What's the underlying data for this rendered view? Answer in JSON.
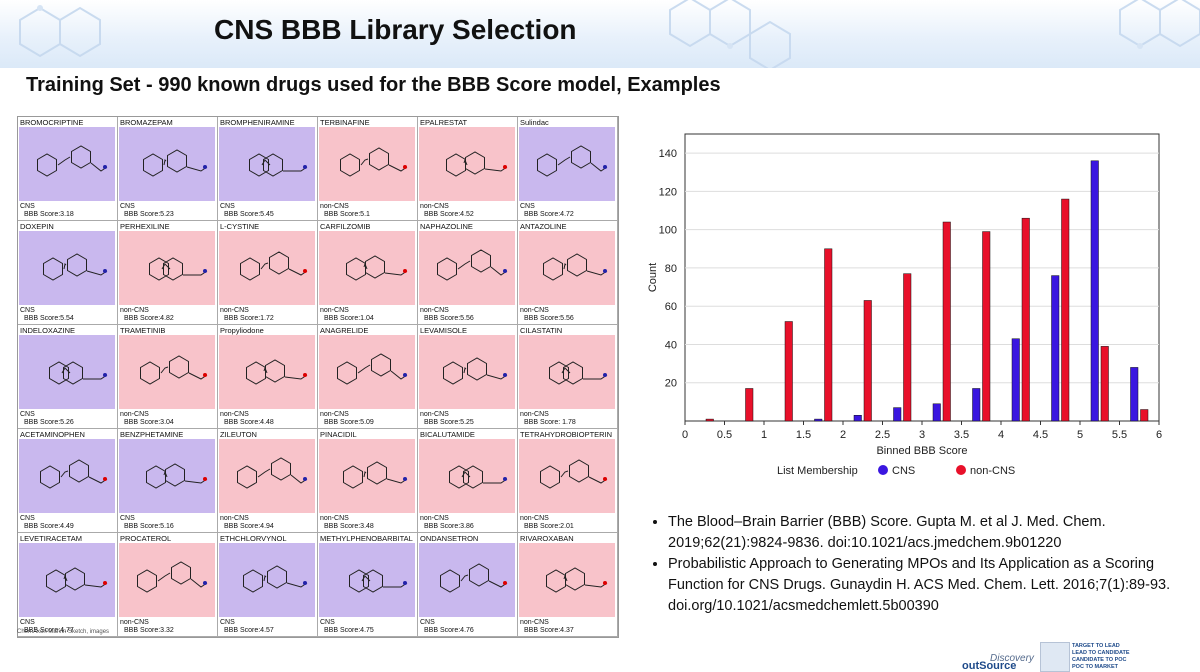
{
  "slide": {
    "title": "CNS BBB Library Selection",
    "subtitle": "Training Set - 990 known drugs used for the BBB Score model, Examples",
    "credit": "ChemAxon Marvin Sketch, images"
  },
  "molecule_grid": {
    "cells": [
      {
        "name": "BROMOCRIPTINE",
        "cls": "CNS",
        "score": "BBB Score:3.18"
      },
      {
        "name": "BROMAZEPAM",
        "cls": "CNS",
        "score": "BBB Score:5.23"
      },
      {
        "name": "BROMPHENIRAMINE",
        "cls": "CNS",
        "score": "BBB Score:5.45"
      },
      {
        "name": "TERBINAFINE",
        "cls": "non-CNS",
        "score": "BBB Score:5.1"
      },
      {
        "name": "EPALRESTAT",
        "cls": "non-CNS",
        "score": "BBB Score:4.52"
      },
      {
        "name": "Sulindac",
        "cls": "CNS",
        "score": "BBB Score:4.72"
      },
      {
        "name": "DOXEPIN",
        "cls": "CNS",
        "score": "BBB Score:5.54"
      },
      {
        "name": "PERHEXILINE",
        "cls": "non-CNS",
        "score": "BBB Score:4.82"
      },
      {
        "name": "L-CYSTINE",
        "cls": "non-CNS",
        "score": "BBB Score:1.72"
      },
      {
        "name": "CARFILZOMIB",
        "cls": "non-CNS",
        "score": "BBB Score:1.04"
      },
      {
        "name": "NAPHAZOLINE",
        "cls": "non-CNS",
        "score": "BBB Score:5.56"
      },
      {
        "name": "ANTAZOLINE",
        "cls": "non-CNS",
        "score": "BBB Score:5.56"
      },
      {
        "name": "INDELOXAZINE",
        "cls": "CNS",
        "score": "BBB Score:5.26"
      },
      {
        "name": "TRAMETINIB",
        "cls": "non-CNS",
        "score": "BBB Score:3.04"
      },
      {
        "name": "Propyliodone",
        "cls": "non-CNS",
        "score": "BBB Score:4.48"
      },
      {
        "name": "ANAGRELIDE",
        "cls": "non-CNS",
        "score": "BBB Score:5.09"
      },
      {
        "name": "LEVAMISOLE",
        "cls": "non-CNS",
        "score": "BBB Score:5.25"
      },
      {
        "name": "CILASTATIN",
        "cls": "non-CNS",
        "score": "BBB Score: 1.78"
      },
      {
        "name": "ACETAMINOPHEN",
        "cls": "CNS",
        "score": "BBB Score:4.49"
      },
      {
        "name": "BENZPHETAMINE",
        "cls": "CNS",
        "score": "BBB Score:5.16"
      },
      {
        "name": "ZILEUTON",
        "cls": "non-CNS",
        "score": "BBB Score:4.94"
      },
      {
        "name": "PINACIDIL",
        "cls": "non-CNS",
        "score": "BBB Score:3.48"
      },
      {
        "name": "BICALUTAMIDE",
        "cls": "non-CNS",
        "score": "BBB Score:3.86"
      },
      {
        "name": "TETRAHYDROBIOPTERIN",
        "cls": "non-CNS",
        "score": "BBB Score:2.01"
      },
      {
        "name": "LEVETIRACETAM",
        "cls": "CNS",
        "score": "BBB Score:4.77"
      },
      {
        "name": "PROCATEROL",
        "cls": "non-CNS",
        "score": "BBB Score:3.32"
      },
      {
        "name": "ETHCHLORVYNOL",
        "cls": "CNS",
        "score": "BBB Score:4.57"
      },
      {
        "name": "METHYLPHENOBARBITAL",
        "cls": "CNS",
        "score": "BBB Score:4.75"
      },
      {
        "name": "ONDANSETRON",
        "cls": "CNS",
        "score": "BBB Score:4.76"
      },
      {
        "name": "RIVAROXABAN",
        "cls": "non-CNS",
        "score": "BBB Score:4.37"
      }
    ]
  },
  "chart_data": {
    "type": "bar",
    "title": "",
    "xlabel": "Binned BBB Score",
    "ylabel": "Count",
    "xlim": [
      0,
      6
    ],
    "ylim": [
      0,
      150
    ],
    "x_ticks": [
      "0",
      "0.5",
      "1",
      "1.5",
      "2",
      "2.5",
      "3",
      "3.5",
      "4",
      "4.5",
      "5",
      "5.5",
      "6"
    ],
    "y_ticks": [
      20,
      40,
      60,
      80,
      100,
      120,
      140
    ],
    "legend_title": "List Membership",
    "legend_position": "bottom",
    "grid": true,
    "bin_centers": [
      0.25,
      0.75,
      1.25,
      1.75,
      2.25,
      2.75,
      3.25,
      3.75,
      4.25,
      4.75,
      5.25,
      5.75
    ],
    "series": [
      {
        "name": "CNS",
        "color": "#3a16e0",
        "values": [
          0,
          0,
          0,
          1,
          3,
          7,
          9,
          17,
          43,
          76,
          136,
          28
        ]
      },
      {
        "name": "non-CNS",
        "color": "#e8102a",
        "values": [
          1,
          17,
          52,
          90,
          63,
          77,
          104,
          99,
          106,
          116,
          39,
          6
        ]
      }
    ]
  },
  "references": [
    "The Blood–Brain Barrier (BBB) Score. Gupta M. et al J. Med. Chem. 2019;62(21):9824-9836. doi:10.1021/acs.jmedchem.9b01220",
    "Probabilistic Approach to Generating MPOs and Its Application as a Scoring Function for CNS Drugs. Gunaydin H. ACS Med. Chem. Lett. 2016;7(1):89-93. doi.org/10.1021/acsmedchemlett.5b00390"
  ],
  "logo": {
    "discovery": "Discovery",
    "outsource": "outSource",
    "taglines": [
      "TARGET TO LEAD",
      "LEAD TO CANDIDATE",
      "CANDIDATE TO POC",
      "POC TO MARKET"
    ]
  },
  "colors": {
    "cns_bg": "#c9b8ee",
    "noncns_bg": "#f8c3ca",
    "cns_bar": "#3a16e0",
    "noncns_bar": "#e8102a"
  }
}
